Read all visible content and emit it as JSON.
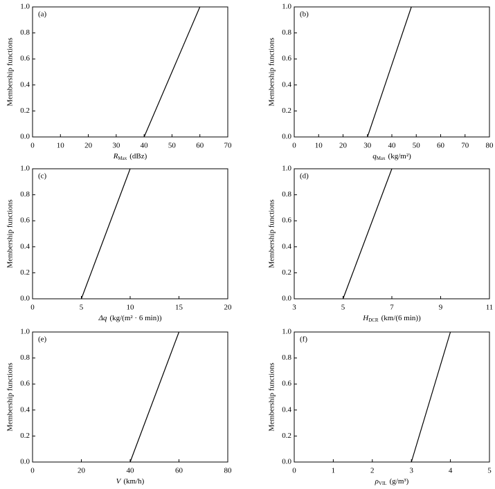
{
  "chart_data": [
    {
      "type": "line",
      "panel": "(a)",
      "ylabel": "Membership functions",
      "xlabel": {
        "symbol": "R",
        "sub": "Max",
        "unit": "(dBz)"
      },
      "x": [
        40,
        60
      ],
      "series": [
        {
          "color": "#000000",
          "values": [
            0,
            1
          ]
        }
      ],
      "xlim": [
        0,
        70
      ],
      "xticks": [
        0,
        10,
        20,
        30,
        40,
        50,
        60,
        70
      ],
      "ylim": [
        0,
        1
      ],
      "yticks": [
        {
          "value": 0,
          "label": "0.0"
        },
        {
          "value": 0.2,
          "label": "0.2"
        },
        {
          "value": 0.4,
          "label": "0.4"
        },
        {
          "value": 0.6,
          "label": "0.6"
        },
        {
          "value": 0.8,
          "label": "0.8"
        },
        {
          "value": 1,
          "label": "1.0"
        }
      ]
    },
    {
      "type": "line",
      "panel": "(b)",
      "ylabel": "Membership functions",
      "xlabel": {
        "symbol": "q",
        "sub": "Max",
        "unit": "(kg/m²)"
      },
      "x": [
        30,
        48
      ],
      "series": [
        {
          "color": "#000000",
          "values": [
            0,
            1
          ]
        }
      ],
      "xlim": [
        0,
        80
      ],
      "xticks": [
        0,
        10,
        20,
        30,
        40,
        50,
        60,
        70,
        80
      ],
      "ylim": [
        0,
        1
      ],
      "yticks": [
        {
          "value": 0,
          "label": "0.0"
        },
        {
          "value": 0.2,
          "label": "0.2"
        },
        {
          "value": 0.4,
          "label": "0.4"
        },
        {
          "value": 0.6,
          "label": "0.6"
        },
        {
          "value": 0.8,
          "label": "0.8"
        },
        {
          "value": 1,
          "label": "1.0"
        }
      ]
    },
    {
      "type": "line",
      "panel": "(c)",
      "ylabel": "Membership functions",
      "xlabel": {
        "symbol": "Δq",
        "unit": "(kg/(m² · 6 min))"
      },
      "x": [
        5,
        10
      ],
      "series": [
        {
          "color": "#000000",
          "values": [
            0,
            1
          ]
        }
      ],
      "xlim": [
        0,
        20
      ],
      "xticks": [
        0,
        5,
        10,
        15,
        20
      ],
      "ylim": [
        0,
        1
      ],
      "yticks": [
        {
          "value": 0,
          "label": "0.0"
        },
        {
          "value": 0.2,
          "label": "0.2"
        },
        {
          "value": 0.4,
          "label": "0.4"
        },
        {
          "value": 0.6,
          "label": "0.6"
        },
        {
          "value": 0.8,
          "label": "0.8"
        },
        {
          "value": 1,
          "label": "1.0"
        }
      ]
    },
    {
      "type": "line",
      "panel": "(d)",
      "ylabel": "Membership functions",
      "xlabel": {
        "symbol": "H",
        "sub": "DCR",
        "unit": "(km/(6 min))"
      },
      "x": [
        5,
        7
      ],
      "series": [
        {
          "color": "#000000",
          "values": [
            0,
            1
          ]
        }
      ],
      "xlim": [
        3,
        11
      ],
      "xticks": [
        3,
        5,
        7,
        9,
        11
      ],
      "ylim": [
        0,
        1
      ],
      "yticks": [
        {
          "value": 0,
          "label": "0.0"
        },
        {
          "value": 0.2,
          "label": "0.2"
        },
        {
          "value": 0.4,
          "label": "0.4"
        },
        {
          "value": 0.6,
          "label": "0.6"
        },
        {
          "value": 0.8,
          "label": "0.8"
        },
        {
          "value": 1,
          "label": "1.0"
        }
      ]
    },
    {
      "type": "line",
      "panel": "(e)",
      "ylabel": "Membership functions",
      "xlabel": {
        "symbol": "V",
        "unit": "(km/h)"
      },
      "x": [
        40,
        60
      ],
      "series": [
        {
          "color": "#000000",
          "values": [
            0,
            1
          ]
        }
      ],
      "xlim": [
        0,
        80
      ],
      "xticks": [
        0,
        20,
        40,
        60,
        80
      ],
      "ylim": [
        0,
        1
      ],
      "yticks": [
        {
          "value": 0,
          "label": "0.0"
        },
        {
          "value": 0.2,
          "label": "0.2"
        },
        {
          "value": 0.4,
          "label": "0.4"
        },
        {
          "value": 0.6,
          "label": "0.6"
        },
        {
          "value": 0.8,
          "label": "0.8"
        },
        {
          "value": 1,
          "label": "1.0"
        }
      ]
    },
    {
      "type": "line",
      "panel": "(f)",
      "ylabel": "Membership functions",
      "xlabel": {
        "symbol": "ρ",
        "sub": "VIL",
        "unit": "(g/m³)"
      },
      "x": [
        3,
        4
      ],
      "series": [
        {
          "color": "#000000",
          "values": [
            0,
            1
          ]
        }
      ],
      "xlim": [
        0,
        5
      ],
      "xticks": [
        0,
        1,
        2,
        3,
        4,
        5
      ],
      "ylim": [
        0,
        1
      ],
      "yticks": [
        {
          "value": 0,
          "label": "0.0"
        },
        {
          "value": 0.2,
          "label": "0.2"
        },
        {
          "value": 0.4,
          "label": "0.4"
        },
        {
          "value": 0.6,
          "label": "0.6"
        },
        {
          "value": 0.8,
          "label": "0.8"
        },
        {
          "value": 1,
          "label": "1.0"
        }
      ]
    }
  ]
}
